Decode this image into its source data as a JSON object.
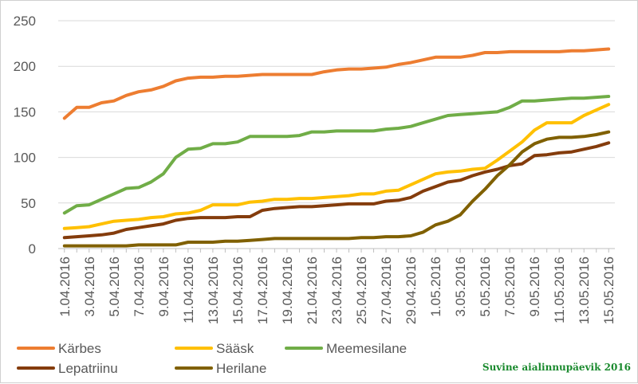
{
  "chart_data": {
    "type": "line",
    "title": "",
    "xlabel": "",
    "ylabel": "",
    "ylim": [
      0,
      250
    ],
    "yticks": [
      0,
      50,
      100,
      150,
      200,
      250
    ],
    "grid": "horizontal",
    "legend_position": "bottom",
    "x": [
      "1.04.2016",
      "2.04.2016",
      "3.04.2016",
      "4.04.2016",
      "5.04.2016",
      "6.04.2016",
      "7.04.2016",
      "8.04.2016",
      "9.04.2016",
      "10.04.2016",
      "11.04.2016",
      "12.04.2016",
      "13.04.2016",
      "14.04.2016",
      "15.04.2016",
      "16.04.2016",
      "17.04.2016",
      "18.04.2016",
      "19.04.2016",
      "20.04.2016",
      "21.04.2016",
      "22.04.2016",
      "23.04.2016",
      "24.04.2016",
      "25.04.2016",
      "26.04.2016",
      "27.04.2016",
      "28.04.2016",
      "29.04.2016",
      "30.04.2016",
      "1.05.2016",
      "2.05.2016",
      "3.05.2016",
      "4.05.2016",
      "5.05.2016",
      "6.05.2016",
      "7.05.2016",
      "8.05.2016",
      "9.05.2016",
      "10.05.2016",
      "11.05.2016",
      "12.05.2016",
      "13.05.2016",
      "14.05.2016",
      "15.05.2016"
    ],
    "x_tick_labels": [
      "1.04.2016",
      "3.04.2016",
      "5.04.2016",
      "7.04.2016",
      "9.04.2016",
      "11.04.2016",
      "13.04.2016",
      "15.04.2016",
      "17.04.2016",
      "19.04.2016",
      "21.04.2016",
      "23.04.2016",
      "25.04.2016",
      "27.04.2016",
      "29.04.2016",
      "1.05.2016",
      "3.05.2016",
      "5.05.2016",
      "7.05.2016",
      "9.05.2016",
      "11.05.2016",
      "13.05.2016",
      "15.05.2016"
    ],
    "series": [
      {
        "name": "Kärbes",
        "color": "#ED7D31",
        "values": [
          143,
          155,
          155,
          160,
          162,
          168,
          172,
          174,
          178,
          184,
          187,
          188,
          188,
          189,
          189,
          190,
          191,
          191,
          191,
          191,
          191,
          194,
          196,
          197,
          197,
          198,
          199,
          202,
          204,
          207,
          210,
          210,
          210,
          212,
          215,
          215,
          216,
          216,
          216,
          216,
          216,
          217,
          217,
          218,
          219
        ]
      },
      {
        "name": "Sääsk",
        "color": "#FFC000",
        "values": [
          22,
          23,
          24,
          27,
          30,
          31,
          32,
          34,
          35,
          38,
          39,
          42,
          48,
          48,
          48,
          51,
          52,
          54,
          54,
          55,
          55,
          56,
          57,
          58,
          60,
          60,
          63,
          64,
          70,
          76,
          82,
          84,
          85,
          87,
          88,
          97,
          107,
          117,
          130,
          138,
          138,
          138,
          146,
          152,
          158
        ]
      },
      {
        "name": "Meemesilane",
        "color": "#70AD47",
        "values": [
          39,
          47,
          48,
          54,
          60,
          66,
          67,
          73,
          82,
          100,
          109,
          110,
          115,
          115,
          117,
          123,
          123,
          123,
          123,
          124,
          128,
          128,
          129,
          129,
          129,
          129,
          131,
          132,
          134,
          138,
          142,
          146,
          147,
          148,
          149,
          150,
          155,
          162,
          162,
          163,
          164,
          165,
          165,
          166,
          167
        ]
      },
      {
        "name": "Lepatriinu",
        "color": "#843C0C",
        "values": [
          12,
          13,
          14,
          15,
          17,
          21,
          23,
          25,
          27,
          31,
          33,
          34,
          34,
          34,
          35,
          35,
          42,
          44,
          45,
          46,
          46,
          47,
          48,
          49,
          49,
          49,
          52,
          53,
          56,
          63,
          68,
          73,
          75,
          80,
          84,
          87,
          91,
          93,
          102,
          103,
          105,
          106,
          109,
          112,
          116
        ]
      },
      {
        "name": "Herilane",
        "color": "#806000",
        "values": [
          3,
          3,
          3,
          3,
          3,
          3,
          4,
          4,
          4,
          4,
          7,
          7,
          7,
          8,
          8,
          9,
          10,
          11,
          11,
          11,
          11,
          11,
          11,
          11,
          12,
          12,
          13,
          13,
          14,
          18,
          26,
          30,
          37,
          52,
          65,
          80,
          92,
          106,
          115,
          120,
          122,
          122,
          123,
          125,
          128
        ]
      }
    ]
  },
  "watermark": "Suvine aialinnupäevik 2016"
}
